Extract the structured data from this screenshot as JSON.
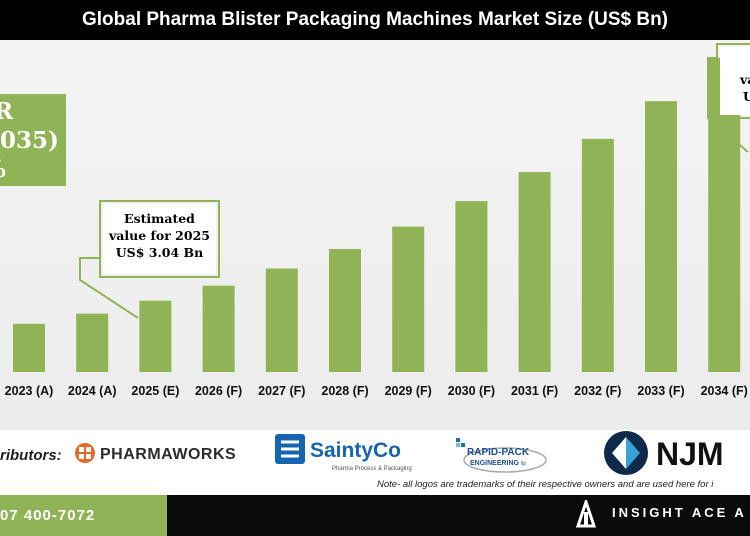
{
  "header": {
    "title": "Global Pharma Blister Packaging Machines Market Size (US$ Bn)"
  },
  "cagr": {
    "line1": "R",
    "line2": "2035)",
    "line3": "%"
  },
  "annotations": {
    "estimate": {
      "line1": "Estimated",
      "line2": "value for 2025",
      "line3": "US$ 3.04 Bn"
    },
    "forecast": {
      "line1": "va",
      "line2": "U"
    }
  },
  "chart_data": {
    "type": "bar",
    "title": "Global Pharma Blister Packaging Machines Market Size (US$ Bn)",
    "categories": [
      "2023 (A)",
      "2024 (A)",
      "2025 (E)",
      "2026 (F)",
      "2027 (F)",
      "2028 (F)",
      "2029 (F)",
      "2030 (F)",
      "2031 (F)",
      "2032 (F)",
      "2033 (F)",
      "2034 (F)"
    ],
    "values": [
      2.38,
      2.67,
      3.04,
      3.47,
      3.96,
      4.52,
      5.16,
      5.89,
      6.72,
      7.67,
      8.75,
      9.99
    ],
    "ylim": [
      1.0,
      10.5
    ],
    "grid": false,
    "legend": "none",
    "bar_color": "#8fb355"
  },
  "distributors": {
    "label": "ributors:",
    "logos": [
      {
        "name": "PHARMAWORKS"
      },
      {
        "name": "SaintyCo",
        "tagline": "Pharma Process & Packaging"
      },
      {
        "name": "RAPID-PACK",
        "sub": "ENGINEERING",
        "suffix": "llp"
      },
      {
        "name": "NJM"
      }
    ],
    "note": "Note- all logos are trademarks of their respective owners and are used here for i"
  },
  "footer": {
    "phone": "07 400-7072",
    "brand": "INSIGHT ACE A"
  }
}
